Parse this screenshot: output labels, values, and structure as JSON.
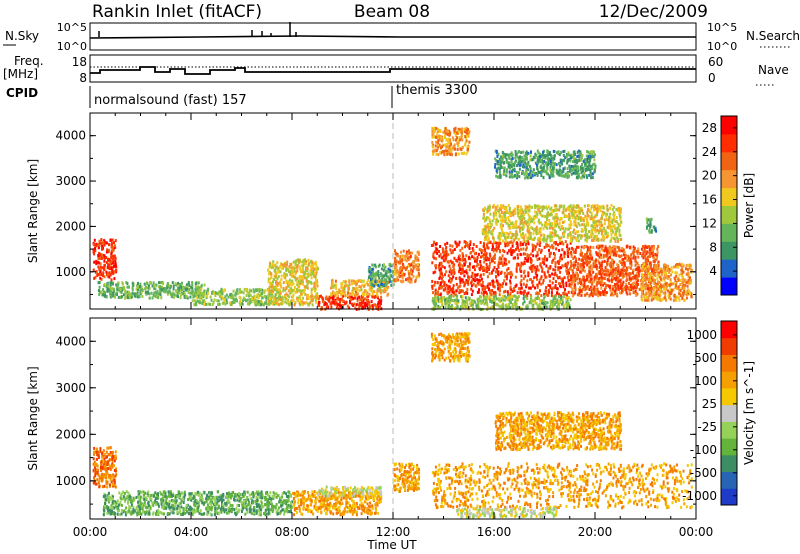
{
  "header": {
    "station": "Rankin Inlet (fitACF)",
    "beam": "Beam 08",
    "date": "12/Dec/2009"
  },
  "strip": {
    "nsky_label": "N.Sky",
    "nsky_ticks": [
      "10^5",
      "10^0"
    ],
    "nsearch_label": "N.Search",
    "nsearch_ticks": [
      "10^5",
      "10^0"
    ],
    "freq_label": "Freq.",
    "freq_unit": "[MHz]",
    "freq_ticks": [
      "18",
      "8"
    ],
    "nave_label": "Nave",
    "nave_ticks": [
      "60",
      "0"
    ],
    "cpid_label": "CPID",
    "cpid_modes": [
      {
        "label": "normalsound (fast) 157",
        "start_h": 0
      },
      {
        "label": "themis 3300",
        "start_h": 12
      }
    ]
  },
  "colors": {
    "power_scale": [
      "#0000ff",
      "#1e64c8",
      "#3c9664",
      "#64b45a",
      "#a0c83c",
      "#f0c81e",
      "#f59632",
      "#f06414",
      "#ff2d00",
      "#ff0000"
    ],
    "velocity_scale": [
      "#1e3cc8",
      "#2864b4",
      "#3c8c64",
      "#64b43c",
      "#96d25a",
      "#c8c8c8",
      "#f5c800",
      "#f5a000",
      "#f57800",
      "#f03c00",
      "#ff0000"
    ]
  },
  "chart_data": [
    {
      "type": "heatmap",
      "title": "Power",
      "ylabel": "Slant Range [km]",
      "xlabel": "Time UT",
      "x_ticks": [
        "00:00",
        "04:00",
        "08:00",
        "12:00",
        "16:00",
        "20:00",
        "00:00"
      ],
      "x_range_hours": [
        0,
        24
      ],
      "y_ticks": [
        1000,
        2000,
        3000,
        4000
      ],
      "ylim": [
        180,
        4500
      ],
      "colorbar": {
        "label": "Power [dB]",
        "ticks": [
          4,
          8,
          12,
          16,
          20,
          24,
          28
        ],
        "range": [
          0,
          30
        ]
      },
      "regions": [
        {
          "t": [
            0.1,
            1.0
          ],
          "r": [
            850,
            1750
          ],
          "v": 27
        },
        {
          "t": [
            0.3,
            4.5
          ],
          "r": [
            450,
            800
          ],
          "v": 10
        },
        {
          "t": [
            4.0,
            7.5
          ],
          "r": [
            300,
            650
          ],
          "v": 12
        },
        {
          "t": [
            7.0,
            9.0
          ],
          "r": [
            300,
            1300
          ],
          "v": 16
        },
        {
          "t": [
            9.0,
            11.5
          ],
          "r": [
            200,
            500
          ],
          "v": 27
        },
        {
          "t": [
            9.5,
            11.8
          ],
          "r": [
            500,
            850
          ],
          "v": 18
        },
        {
          "t": [
            11.0,
            12.0
          ],
          "r": [
            700,
            1200
          ],
          "v": 8
        },
        {
          "t": [
            12.0,
            13.0
          ],
          "r": [
            800,
            1500
          ],
          "v": 22
        },
        {
          "t": [
            13.5,
            19.0
          ],
          "r": [
            500,
            1700
          ],
          "v": 26
        },
        {
          "t": [
            13.5,
            19.0
          ],
          "r": [
            200,
            500
          ],
          "v": 12
        },
        {
          "t": [
            19.0,
            22.5
          ],
          "r": [
            500,
            1600
          ],
          "v": 24
        },
        {
          "t": [
            21.8,
            23.8
          ],
          "r": [
            400,
            1200
          ],
          "v": 20
        },
        {
          "t": [
            15.5,
            21.0
          ],
          "r": [
            1700,
            2500
          ],
          "v": 16
        },
        {
          "t": [
            13.5,
            15.0
          ],
          "r": [
            3600,
            4200
          ],
          "v": 20
        },
        {
          "t": [
            16.0,
            20.0
          ],
          "r": [
            3100,
            3700
          ],
          "v": 8
        },
        {
          "t": [
            22.0,
            22.4
          ],
          "r": [
            1900,
            2200
          ],
          "v": 8
        }
      ]
    },
    {
      "type": "heatmap",
      "title": "Velocity",
      "ylabel": "Slant Range [km]",
      "xlabel": "Time UT",
      "x_ticks": [
        "00:00",
        "04:00",
        "08:00",
        "12:00",
        "16:00",
        "20:00",
        "00:00"
      ],
      "x_range_hours": [
        0,
        24
      ],
      "y_ticks": [
        1000,
        2000,
        3000,
        4000
      ],
      "ylim": [
        180,
        4500
      ],
      "colorbar": {
        "label": "Velocity [m s^-1]",
        "ticks": [
          "1000",
          "500",
          "100",
          "25",
          "-25",
          "-100",
          "-500",
          "-1000"
        ]
      },
      "regions": [
        {
          "t": [
            0.1,
            1.0
          ],
          "r": [
            900,
            1750
          ],
          "v": 8
        },
        {
          "t": [
            0.5,
            8.0
          ],
          "r": [
            300,
            800
          ],
          "v": 3
        },
        {
          "t": [
            8.0,
            11.5
          ],
          "r": [
            300,
            800
          ],
          "v": 7
        },
        {
          "t": [
            9.0,
            11.5
          ],
          "r": [
            700,
            900
          ],
          "v": 5
        },
        {
          "t": [
            12.0,
            13.0
          ],
          "r": [
            800,
            1400
          ],
          "v": 7
        },
        {
          "t": [
            13.5,
            23.8
          ],
          "r": [
            450,
            1400
          ],
          "v": 7
        },
        {
          "t": [
            14.5,
            18.5
          ],
          "r": [
            250,
            450
          ],
          "v": 5
        },
        {
          "t": [
            16.0,
            21.0
          ],
          "r": [
            1700,
            2500
          ],
          "v": 7
        },
        {
          "t": [
            13.5,
            15.0
          ],
          "r": [
            3600,
            4200
          ],
          "v": 7
        }
      ]
    }
  ]
}
